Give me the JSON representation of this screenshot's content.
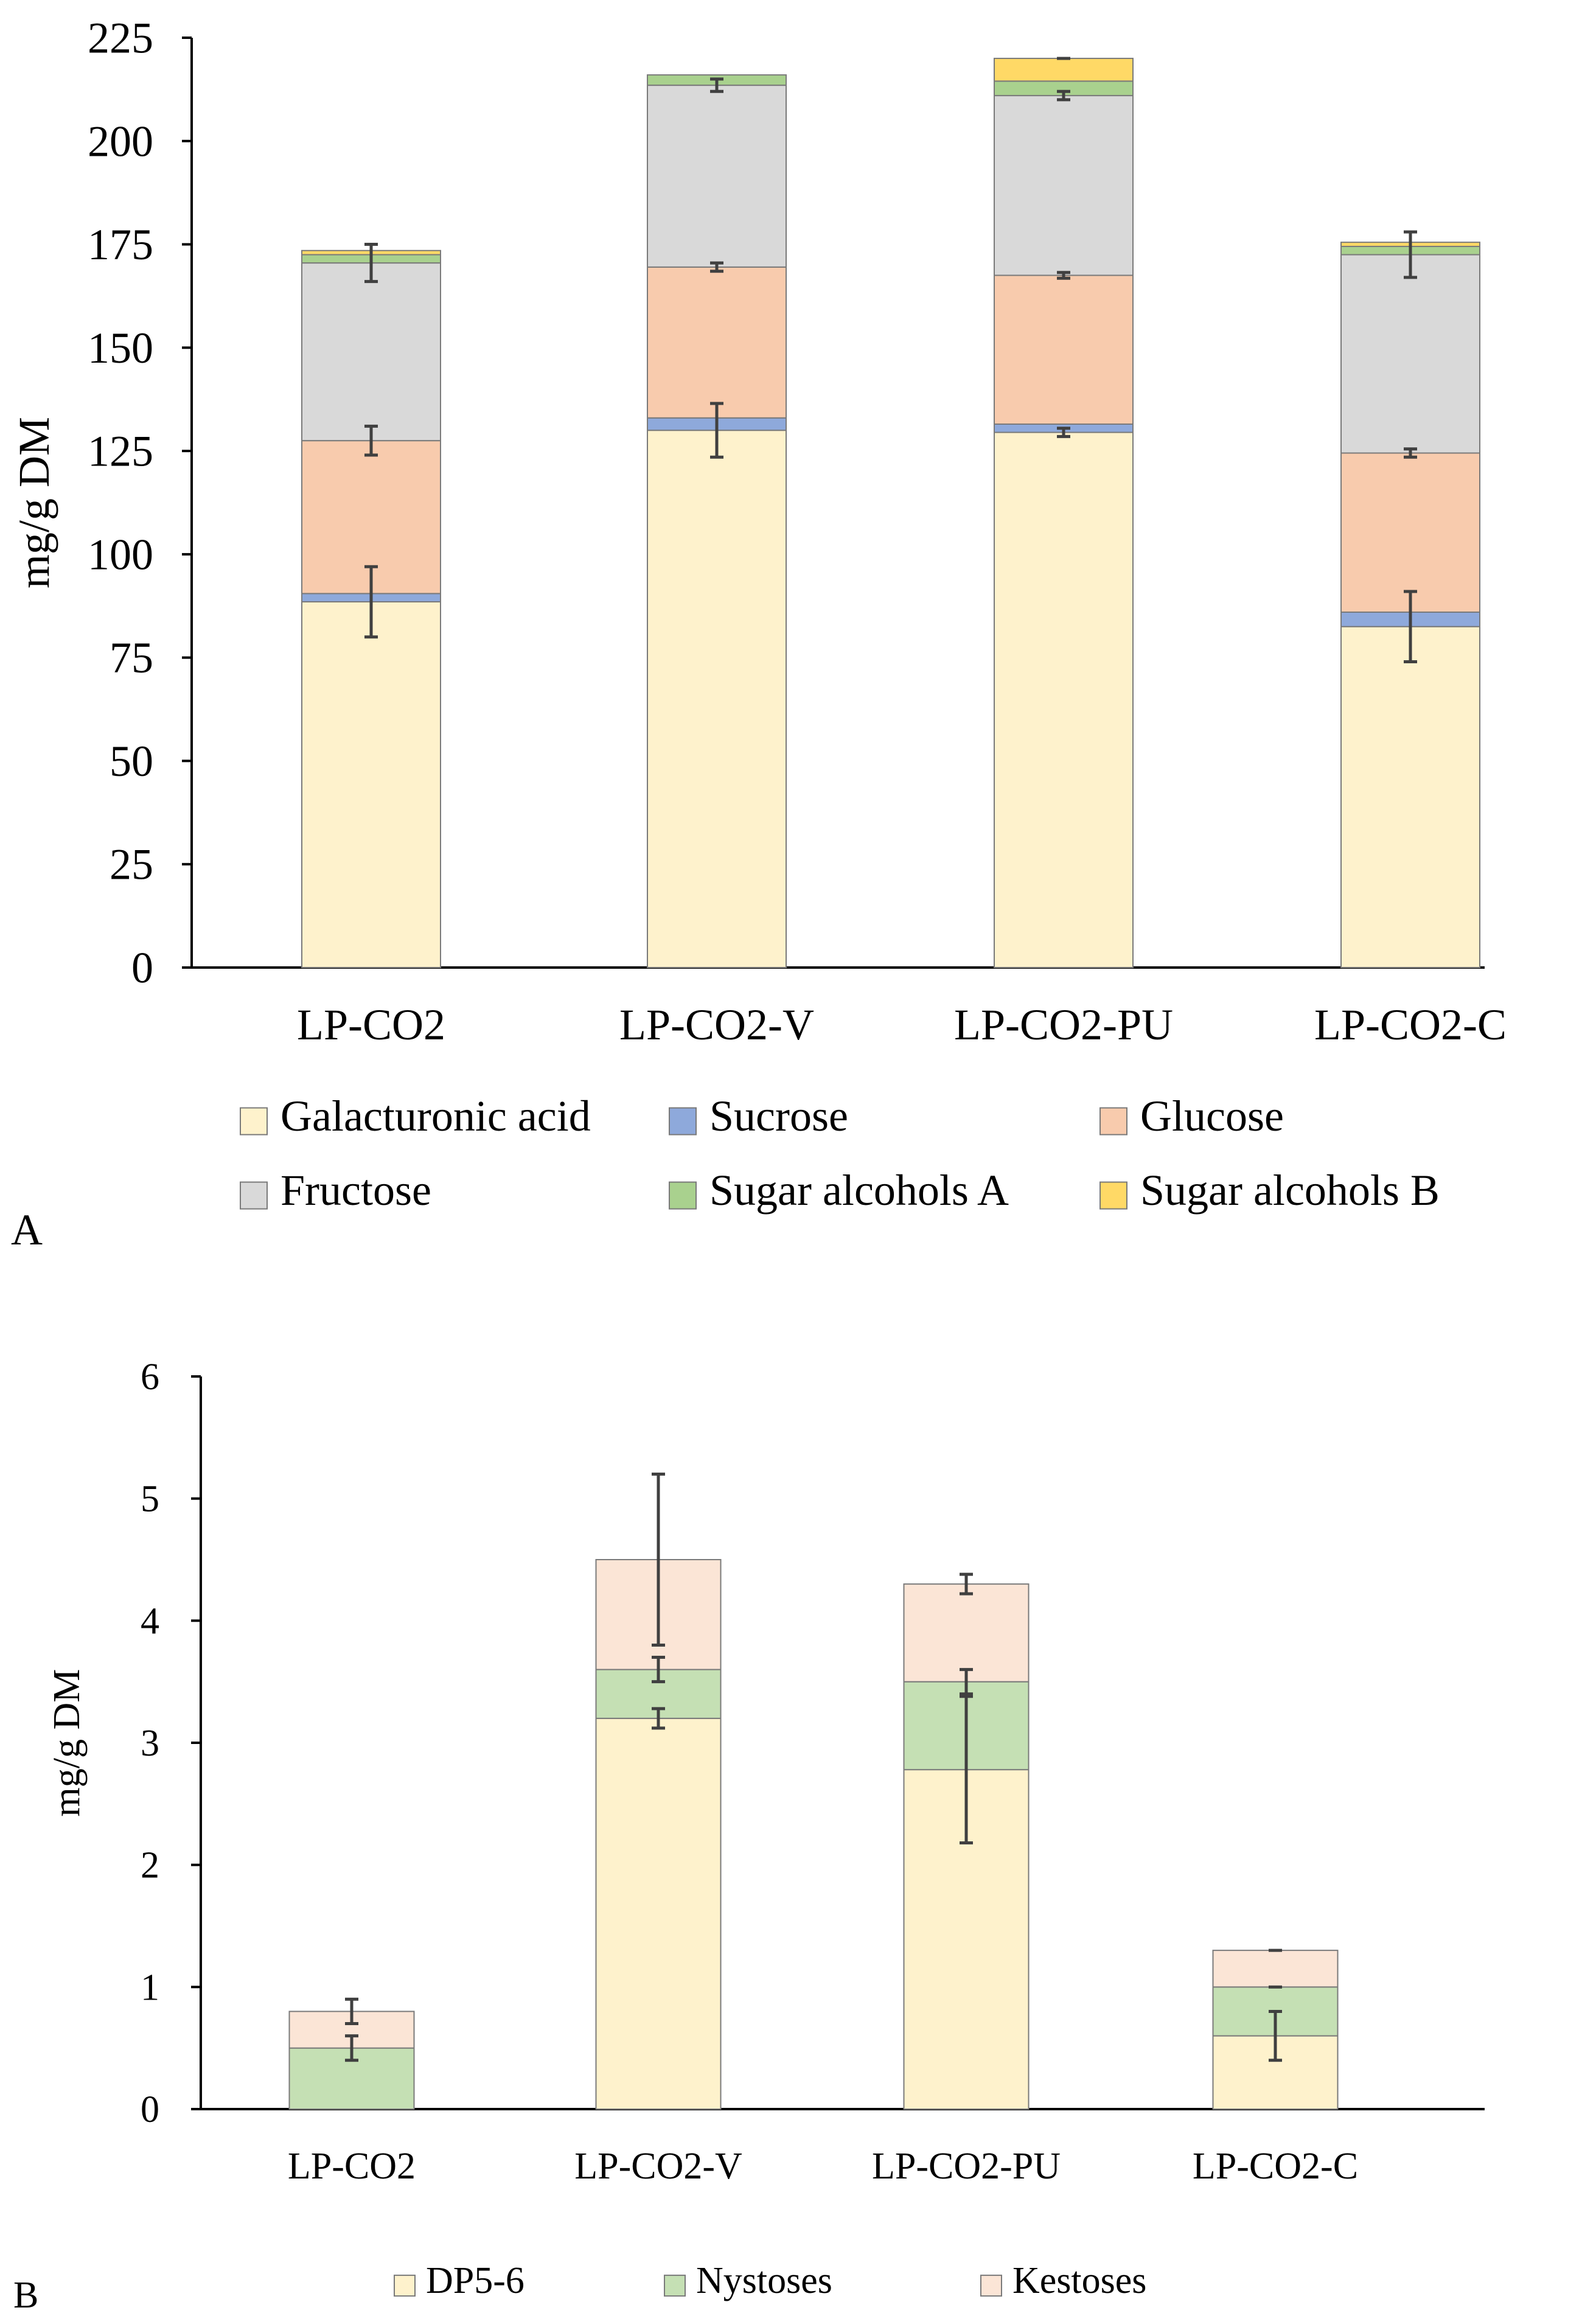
{
  "chart_data": [
    {
      "panel_label": "A",
      "type": "bar",
      "stacked": true,
      "ylabel": "mg/g DM",
      "ylim": [
        0,
        225
      ],
      "yticks": [
        0,
        25,
        50,
        75,
        100,
        125,
        150,
        175,
        200,
        225
      ],
      "categories": [
        "LP-CO2",
        "LP-CO2-V",
        "LP-CO2-PU",
        "LP-CO2-C"
      ],
      "legend_position": "bottom",
      "series": [
        {
          "name": "Galacturonic acid",
          "color": "#FEF2CC",
          "values": [
            88.5,
            130,
            129.5,
            82.5
          ],
          "errors": [
            8.5,
            6.5,
            1,
            8.5
          ]
        },
        {
          "name": "Sucrose",
          "color": "#8EA9DB",
          "values": [
            2,
            3,
            2,
            3.5
          ],
          "errors": [
            null,
            null,
            null,
            null
          ]
        },
        {
          "name": "Glucose",
          "color": "#F8CBAD",
          "values": [
            37,
            36.5,
            36,
            38.5
          ],
          "errors": [
            3.5,
            1,
            0.7,
            1
          ]
        },
        {
          "name": "Fructose",
          "color": "#D9D9D9",
          "values": [
            43,
            44,
            43.5,
            48
          ],
          "errors": [
            4.5,
            1.5,
            1,
            5.5
          ]
        },
        {
          "name": "Sugar alcohols A",
          "color": "#A9D18E",
          "values": [
            2,
            2.5,
            3.5,
            2
          ],
          "errors": [
            null,
            null,
            null,
            null
          ]
        },
        {
          "name": "Sugar alcohols B",
          "color": "#FFD966",
          "values": [
            1,
            0,
            5.5,
            1
          ],
          "errors": [
            null,
            null,
            0,
            null
          ]
        }
      ]
    },
    {
      "panel_label": "B",
      "type": "bar",
      "stacked": true,
      "ylabel": "mg/g  DM",
      "ylim": [
        0,
        6
      ],
      "yticks": [
        0,
        1,
        2,
        3,
        4,
        5,
        6
      ],
      "categories": [
        "LP-CO2",
        "LP-CO2-V",
        "LP-CO2-PU",
        "LP-CO2-C"
      ],
      "legend_position": "bottom",
      "series": [
        {
          "name": "DP5-6",
          "color": "#FEF2CC",
          "values": [
            0,
            3.2,
            2.78,
            0.6
          ],
          "errors": [
            null,
            0.08,
            0.6,
            0.2
          ]
        },
        {
          "name": "Nystoses",
          "color": "#C5E0B4",
          "values": [
            0.5,
            0.4,
            0.72,
            0.4
          ],
          "errors": [
            0.1,
            0.1,
            0.1,
            0
          ]
        },
        {
          "name": "Kestoses",
          "color": "#FBE5D6",
          "values": [
            0.3,
            0.9,
            0.8,
            0.3
          ],
          "errors": [
            0.1,
            0.7,
            0.08,
            0
          ]
        }
      ]
    }
  ]
}
